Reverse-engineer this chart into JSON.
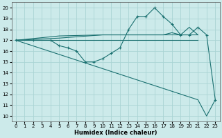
{
  "xlabel": "Humidex (Indice chaleur)",
  "bg_color": "#cceaea",
  "grid_color": "#aad4d4",
  "line_color": "#1a7070",
  "xlim": [
    -0.5,
    23.5
  ],
  "ylim": [
    9.5,
    20.5
  ],
  "xticks": [
    0,
    1,
    2,
    3,
    4,
    5,
    6,
    7,
    8,
    9,
    10,
    11,
    12,
    13,
    14,
    15,
    16,
    17,
    18,
    19,
    20,
    21,
    22,
    23
  ],
  "yticks": [
    10,
    11,
    12,
    13,
    14,
    15,
    16,
    17,
    18,
    19,
    20
  ],
  "series1_x": [
    0,
    21
  ],
  "series1_y": [
    17,
    17
  ],
  "series2_x": [
    0,
    5,
    10,
    14,
    17,
    18,
    19,
    20,
    21
  ],
  "series2_y": [
    17,
    17.2,
    17.5,
    17.5,
    17.5,
    17.7,
    17.5,
    18.2,
    17.5
  ],
  "series3_x": [
    0,
    5,
    10,
    14,
    15,
    16,
    17,
    18,
    19,
    20,
    21
  ],
  "series3_y": [
    17,
    17.4,
    17.5,
    17.5,
    17.5,
    17.5,
    17.5,
    17.5,
    17.5,
    17.5,
    17.5
  ],
  "series4_marked_x": [
    0,
    2,
    4,
    5,
    6,
    7,
    8,
    9,
    10,
    11,
    12,
    13,
    14,
    15,
    16,
    17,
    18,
    19,
    20,
    21,
    22,
    23
  ],
  "series4_marked_y": [
    17,
    17,
    17,
    16.5,
    16.3,
    16,
    15,
    15,
    15.3,
    15.8,
    16.3,
    18,
    19.2,
    19.2,
    20,
    19.2,
    18.5,
    17.5,
    17.5,
    18.2,
    17.5,
    11.5
  ],
  "series5_x": [
    0,
    21,
    22,
    23
  ],
  "series5_y": [
    17,
    11.5,
    10,
    11.5
  ],
  "figsize": [
    3.2,
    2.0
  ],
  "dpi": 100
}
